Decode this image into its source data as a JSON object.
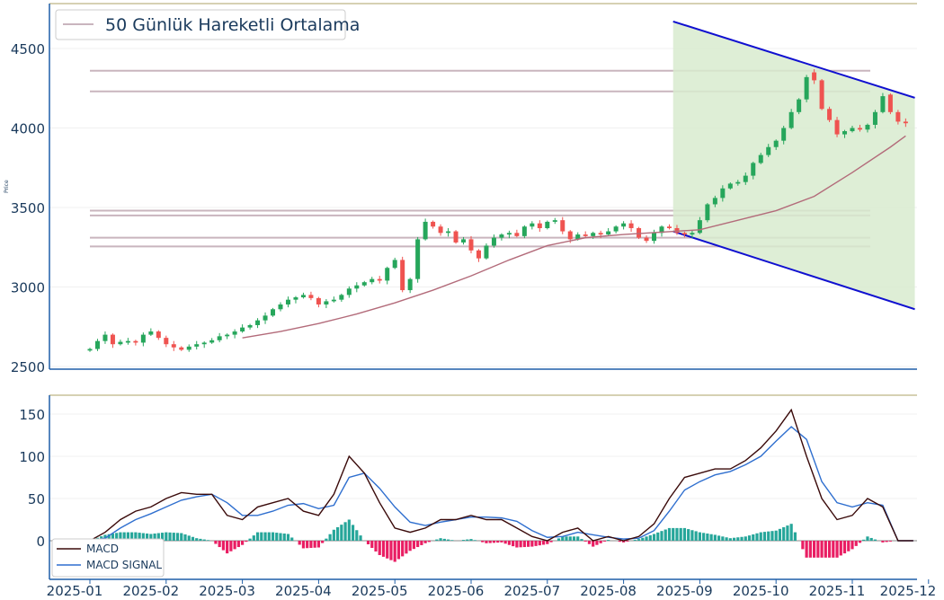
{
  "chart_data": [
    {
      "type": "candlestick",
      "ylabel": "Price",
      "ylim": [
        2500,
        4700
      ],
      "yticks": [
        2500,
        3000,
        3500,
        4000,
        4500
      ],
      "legend": {
        "placement": "top-left",
        "entries": [
          "50 Günlük Hareketli Ortalama"
        ]
      },
      "colors": {
        "up": "#26a65b",
        "down": "#ef5350",
        "ma": "#b36b7a",
        "levels": "#c9b5be",
        "channel": "#1010d0",
        "channel_fill": "#d8ebcf"
      },
      "horizontal_levels": [
        4360,
        4230,
        3480,
        3450,
        3310,
        3255
      ],
      "trend_channel": {
        "start_month": 7.65,
        "end_month": 10.82,
        "upper": [
          4670,
          4190
        ],
        "lower": [
          3350,
          2860
        ]
      },
      "candles": {
        "months": [
          0,
          0.1,
          0.2,
          0.3,
          0.4,
          0.5,
          0.6,
          0.7,
          0.8,
          0.9,
          1,
          1.1,
          1.2,
          1.3,
          1.4,
          1.5,
          1.6,
          1.7,
          1.8,
          1.9,
          2,
          2.1,
          2.2,
          2.3,
          2.4,
          2.5,
          2.6,
          2.7,
          2.8,
          2.9,
          3,
          3.1,
          3.2,
          3.3,
          3.4,
          3.5,
          3.6,
          3.7,
          3.8,
          3.9,
          4,
          4.1,
          4.2,
          4.3,
          4.4,
          4.5,
          4.6,
          4.7,
          4.8,
          4.9,
          5,
          5.1,
          5.2,
          5.3,
          5.4,
          5.5,
          5.6,
          5.7,
          5.8,
          5.9,
          6,
          6.1,
          6.2,
          6.3,
          6.4,
          6.5,
          6.6,
          6.7,
          6.8,
          6.9,
          7,
          7.1,
          7.2,
          7.3,
          7.4,
          7.5,
          7.6,
          7.7,
          7.8,
          7.9,
          8,
          8.1,
          8.2,
          8.3,
          8.4,
          8.5,
          8.6,
          8.7,
          8.8,
          8.9,
          9,
          9.1,
          9.2,
          9.3,
          9.4,
          9.5,
          9.6,
          9.7,
          9.8,
          9.9,
          10,
          10.1,
          10.2,
          10.3,
          10.4,
          10.5,
          10.6,
          10.7
        ],
        "close": [
          2610,
          2660,
          2700,
          2640,
          2655,
          2660,
          2650,
          2700,
          2720,
          2680,
          2640,
          2620,
          2605,
          2625,
          2640,
          2650,
          2665,
          2690,
          2700,
          2720,
          2745,
          2760,
          2790,
          2820,
          2860,
          2890,
          2920,
          2935,
          2950,
          2930,
          2890,
          2910,
          2920,
          2950,
          2990,
          3010,
          3030,
          3050,
          3040,
          3120,
          3170,
          2980,
          3050,
          3300,
          3410,
          3380,
          3340,
          3350,
          3280,
          3300,
          3230,
          3180,
          3260,
          3310,
          3330,
          3340,
          3320,
          3380,
          3400,
          3370,
          3410,
          3420,
          3350,
          3300,
          3330,
          3320,
          3340,
          3330,
          3350,
          3380,
          3400,
          3370,
          3310,
          3290,
          3340,
          3380,
          3370,
          3340,
          3330,
          3340,
          3420,
          3520,
          3560,
          3620,
          3650,
          3660,
          3700,
          3780,
          3830,
          3880,
          3920,
          4000,
          4100,
          4180,
          4320,
          4300,
          4120,
          4050,
          3960,
          3980,
          4000,
          3990,
          4020,
          4100,
          4200,
          4100,
          4040,
          4030
        ],
        "open": [
          2600,
          2610,
          2660,
          2700,
          2640,
          2650,
          2660,
          2650,
          2700,
          2720,
          2680,
          2640,
          2620,
          2605,
          2625,
          2640,
          2650,
          2665,
          2690,
          2700,
          2720,
          2745,
          2760,
          2790,
          2820,
          2860,
          2890,
          2920,
          2935,
          2950,
          2930,
          2890,
          2910,
          2920,
          2950,
          2990,
          3010,
          3030,
          3050,
          3040,
          3120,
          3170,
          2980,
          3050,
          3300,
          3410,
          3380,
          3340,
          3350,
          3280,
          3300,
          3230,
          3180,
          3260,
          3310,
          3330,
          3340,
          3320,
          3380,
          3400,
          3370,
          3410,
          3420,
          3350,
          3300,
          3330,
          3320,
          3340,
          3330,
          3350,
          3380,
          3400,
          3370,
          3310,
          3290,
          3340,
          3380,
          3370,
          3340,
          3330,
          3340,
          3420,
          3520,
          3560,
          3620,
          3650,
          3660,
          3700,
          3780,
          3830,
          3880,
          3920,
          4000,
          4100,
          4180,
          4350,
          4300,
          4120,
          4050,
          3960,
          3980,
          4000,
          3990,
          4020,
          4100,
          4210,
          4100,
          4040
        ]
      },
      "moving_average_50": {
        "months": [
          2,
          2.5,
          3,
          3.5,
          4,
          4.5,
          5,
          5.5,
          6,
          6.5,
          7,
          7.5,
          8,
          8.5,
          9,
          9.5,
          10,
          10.5,
          10.7
        ],
        "values": [
          2680,
          2720,
          2770,
          2830,
          2900,
          2980,
          3070,
          3170,
          3260,
          3310,
          3330,
          3345,
          3360,
          3420,
          3480,
          3570,
          3720,
          3880,
          3950
        ]
      }
    },
    {
      "type": "line+bar",
      "ylim": [
        -40,
        170
      ],
      "yticks": [
        0,
        50,
        100,
        150
      ],
      "legend": {
        "placement": "bottom-left",
        "entries": [
          "MACD",
          "MACD SIGNAL"
        ]
      },
      "colors": {
        "macd": "#3a0a0a",
        "signal": "#2f6fcf",
        "hist_pos": "#26a69a",
        "hist_neg": "#e91e63"
      },
      "x_months": [
        0,
        0.2,
        0.4,
        0.6,
        0.8,
        1,
        1.2,
        1.4,
        1.6,
        1.8,
        2,
        2.2,
        2.4,
        2.6,
        2.8,
        3,
        3.2,
        3.4,
        3.6,
        3.8,
        4,
        4.2,
        4.4,
        4.6,
        4.8,
        5,
        5.2,
        5.4,
        5.6,
        5.8,
        6,
        6.2,
        6.4,
        6.6,
        6.8,
        7,
        7.2,
        7.4,
        7.6,
        7.8,
        8,
        8.2,
        8.4,
        8.6,
        8.8,
        9,
        9.2,
        9.4,
        9.6,
        9.8,
        10,
        10.2,
        10.4,
        10.6,
        10.8
      ],
      "macd": [
        0,
        10,
        25,
        35,
        40,
        50,
        57,
        55,
        55,
        30,
        25,
        40,
        45,
        50,
        35,
        30,
        55,
        100,
        80,
        45,
        15,
        10,
        15,
        25,
        25,
        30,
        25,
        25,
        15,
        5,
        0,
        10,
        15,
        0,
        5,
        0,
        5,
        20,
        50,
        75,
        80,
        85,
        85,
        95,
        110,
        130,
        155,
        100,
        50,
        25,
        30,
        50,
        40,
        0,
        0
      ],
      "signal": [
        0,
        3,
        15,
        25,
        32,
        40,
        48,
        52,
        55,
        45,
        30,
        30,
        35,
        42,
        44,
        38,
        42,
        75,
        80,
        62,
        40,
        22,
        18,
        22,
        25,
        28,
        28,
        27,
        23,
        12,
        4,
        5,
        10,
        7,
        4,
        2,
        3,
        12,
        35,
        60,
        70,
        78,
        82,
        90,
        100,
        118,
        135,
        120,
        70,
        45,
        40,
        45,
        42,
        0,
        0
      ],
      "hist": [
        0,
        7,
        10,
        10,
        8,
        10,
        9,
        3,
        0,
        -15,
        -5,
        10,
        10,
        8,
        -9,
        -8,
        13,
        25,
        0,
        -17,
        -25,
        -12,
        -3,
        3,
        0,
        2,
        -3,
        -2,
        -8,
        -7,
        -4,
        5,
        5,
        -7,
        1,
        -2,
        2,
        8,
        15,
        15,
        10,
        7,
        3,
        5,
        10,
        12,
        20,
        -20,
        -20,
        -20,
        -10,
        5,
        -2,
        0,
        0
      ]
    }
  ],
  "xaxis": {
    "tick_labels": [
      "2025-01",
      "2025-02",
      "2025-03",
      "2025-04",
      "2025-05",
      "2025-06",
      "2025-07",
      "2025-08",
      "2025-09",
      "2025-10",
      "2025-11",
      "2025-12"
    ]
  }
}
